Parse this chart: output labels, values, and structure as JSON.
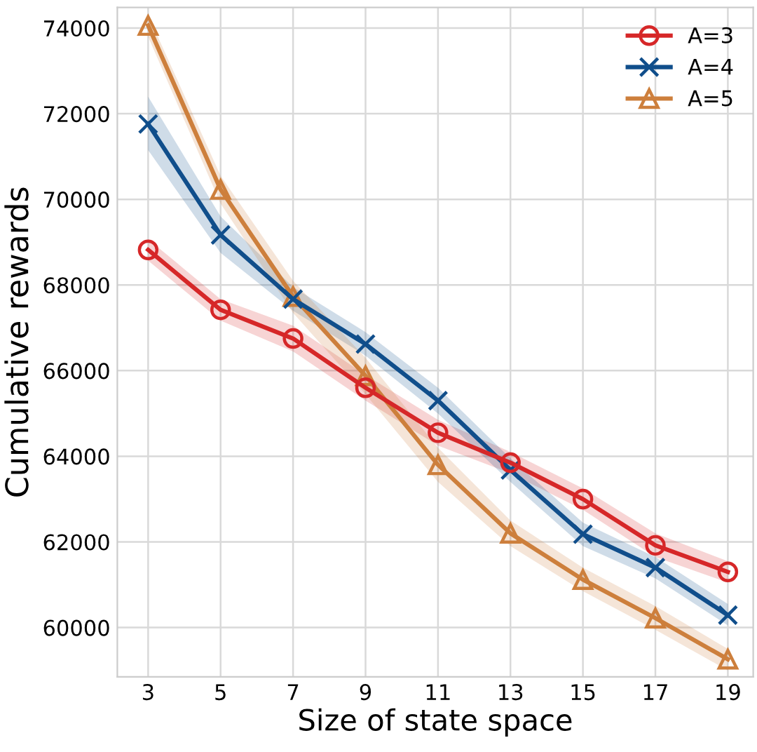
{
  "chart_data": {
    "type": "line",
    "xlabel": "Size of state space",
    "ylabel": "Cumulative rewards",
    "x": [
      3,
      5,
      7,
      9,
      11,
      13,
      15,
      17,
      19
    ],
    "series": [
      {
        "name": "A=3",
        "color": "#d62728",
        "marker": "circle",
        "values": [
          68820,
          67420,
          66750,
          65600,
          64550,
          63850,
          63000,
          61920,
          61300
        ],
        "lower": [
          68570,
          67170,
          66450,
          65300,
          64250,
          63600,
          62750,
          61650,
          61050
        ],
        "upper": [
          69070,
          67670,
          67050,
          65900,
          64850,
          64100,
          63250,
          62200,
          61550
        ]
      },
      {
        "name": "A=4",
        "color": "#104e8b",
        "marker": "cross",
        "values": [
          71760,
          69170,
          67670,
          66620,
          65300,
          63680,
          62180,
          61400,
          60290
        ],
        "lower": [
          71150,
          68750,
          67400,
          66350,
          65000,
          63400,
          61900,
          61150,
          60050
        ],
        "upper": [
          72400,
          69600,
          67950,
          66900,
          65600,
          63950,
          62450,
          61650,
          60550
        ]
      },
      {
        "name": "A=5",
        "color": "#cd7f3c",
        "marker": "triangle",
        "values": [
          74060,
          70230,
          67730,
          65880,
          63800,
          62200,
          61120,
          60220,
          59260
        ],
        "lower": [
          73800,
          69900,
          67350,
          65450,
          63400,
          61900,
          60850,
          59950,
          59000
        ],
        "upper": [
          74300,
          70550,
          68100,
          66300,
          64200,
          62500,
          61400,
          60500,
          59500
        ]
      }
    ],
    "xlim": [
      2.15,
      19.7
    ],
    "ylim": [
      58850,
      74480
    ],
    "xticks": [
      3,
      5,
      7,
      9,
      11,
      13,
      15,
      17,
      19
    ],
    "yticks": [
      60000,
      62000,
      64000,
      66000,
      68000,
      70000,
      72000,
      74000
    ],
    "grid": true,
    "legend": "top right",
    "line_style": "solid"
  }
}
